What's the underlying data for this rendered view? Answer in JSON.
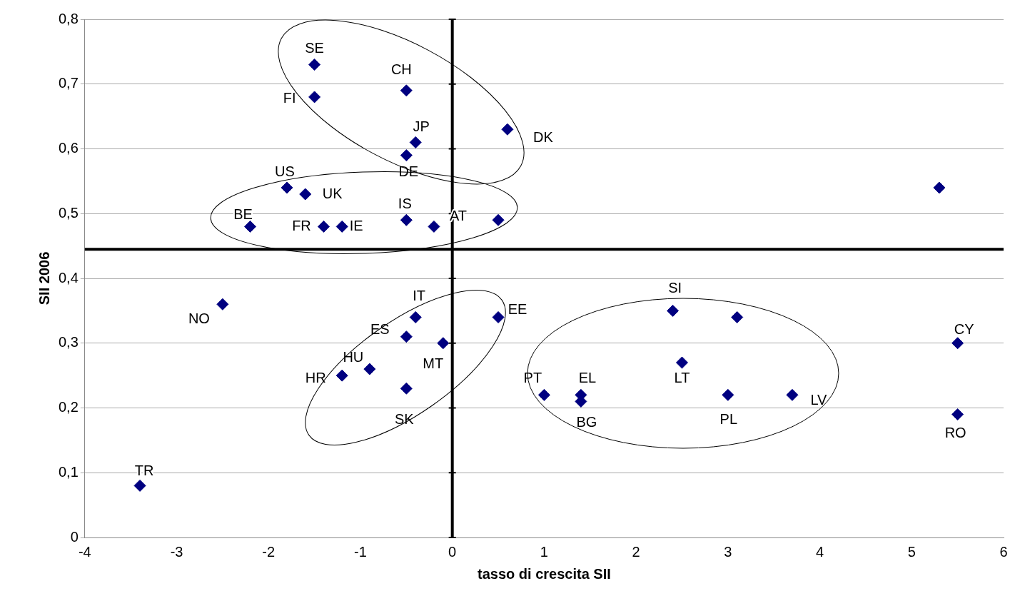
{
  "chart_data": {
    "type": "scatter",
    "xlabel": "tasso di crescita SII",
    "ylabel": "SII 2006",
    "series": [
      {
        "color": "#000080",
        "x": [
          -1.5,
          -1.5,
          -0.5,
          -0.4,
          -0.5,
          0.6,
          -1.8,
          -1.6,
          -2.2,
          -1.4,
          -1.2,
          -0.5,
          -0.2,
          0.5,
          5.3,
          -2.5,
          -0.4,
          0.5,
          -0.5,
          -0.1,
          -0.9,
          -1.2,
          -0.5,
          -3.4,
          1.0,
          1.4,
          1.4,
          2.4,
          3.1,
          2.5,
          3.0,
          3.7,
          5.5,
          5.5
        ],
        "values": [
          0.73,
          0.68,
          0.69,
          0.61,
          0.59,
          0.63,
          0.54,
          0.53,
          0.48,
          0.48,
          0.48,
          0.49,
          0.48,
          0.49,
          0.54,
          0.36,
          0.34,
          0.34,
          0.31,
          0.3,
          0.26,
          0.25,
          0.23,
          0.08,
          0.22,
          0.22,
          0.21,
          0.35,
          0.34,
          0.27,
          0.22,
          0.22,
          0.3,
          0.19
        ]
      }
    ],
    "xlim": [
      -4,
      6
    ],
    "xticks": [
      -4,
      -3,
      -2,
      -1,
      0,
      1,
      2,
      3,
      4,
      5,
      6
    ],
    "ylim": [
      0,
      0.8
    ],
    "yticks": [
      0,
      {
        "value": 0.1,
        "label": "0,1"
      },
      {
        "value": 0.2,
        "label": "0,2"
      },
      {
        "value": 0.3,
        "label": "0,3"
      },
      {
        "value": 0.4,
        "label": "0,4"
      },
      {
        "value": 0.5,
        "label": "0,5"
      },
      {
        "value": 0.6,
        "label": "0,6"
      },
      {
        "value": 0.7,
        "label": "0,7"
      },
      {
        "value": 0.8,
        "label": "0,8"
      }
    ],
    "grid": "y",
    "legend": false,
    "marker": "diamond",
    "ref_lines": [
      {
        "axis": "x",
        "value": 0,
        "color": "#000000"
      },
      {
        "axis": "y",
        "value": 0.445,
        "color": "#000000"
      }
    ],
    "annotations": [
      {
        "text": "SE",
        "x": -1.5,
        "y": 0.73
      },
      {
        "text": "FI",
        "x": -1.5,
        "y": 0.68
      },
      {
        "text": "CH",
        "x": -0.5,
        "y": 0.69
      },
      {
        "text": "JP",
        "x": -0.4,
        "y": 0.61
      },
      {
        "text": "DE",
        "x": -0.5,
        "y": 0.59
      },
      {
        "text": "DK",
        "x": 0.6,
        "y": 0.63
      },
      {
        "text": "US",
        "x": -1.8,
        "y": 0.54
      },
      {
        "text": "UK",
        "x": -1.6,
        "y": 0.53
      },
      {
        "text": "BE",
        "x": -2.2,
        "y": 0.48
      },
      {
        "text": "FR",
        "x": -1.4,
        "y": 0.48
      },
      {
        "text": "IE",
        "x": -1.2,
        "y": 0.48
      },
      {
        "text": "IS",
        "x": -0.5,
        "y": 0.49
      },
      {
        "text": "AT",
        "x": -0.2,
        "y": 0.48
      },
      {
        "text": "NO",
        "x": -2.5,
        "y": 0.36
      },
      {
        "text": "IT",
        "x": -0.4,
        "y": 0.34
      },
      {
        "text": "EE",
        "x": 0.5,
        "y": 0.34
      },
      {
        "text": "ES",
        "x": -0.5,
        "y": 0.31
      },
      {
        "text": "MT",
        "x": -0.1,
        "y": 0.3
      },
      {
        "text": "HU",
        "x": -0.9,
        "y": 0.26
      },
      {
        "text": "HR",
        "x": -1.2,
        "y": 0.25
      },
      {
        "text": "SK",
        "x": -0.5,
        "y": 0.23
      },
      {
        "text": "TR",
        "x": -3.4,
        "y": 0.08
      },
      {
        "text": "PT",
        "x": 1.0,
        "y": 0.22
      },
      {
        "text": "EL",
        "x": 1.4,
        "y": 0.22
      },
      {
        "text": "BG",
        "x": 1.4,
        "y": 0.21
      },
      {
        "text": "SI",
        "x": 2.4,
        "y": 0.35
      },
      {
        "text": "LT",
        "x": 2.5,
        "y": 0.27
      },
      {
        "text": "PL",
        "x": 3.0,
        "y": 0.22
      },
      {
        "text": "LV",
        "x": 3.7,
        "y": 0.22
      },
      {
        "text": "CY",
        "x": 5.5,
        "y": 0.3
      },
      {
        "text": "RO",
        "x": 5.5,
        "y": 0.19
      }
    ]
  }
}
